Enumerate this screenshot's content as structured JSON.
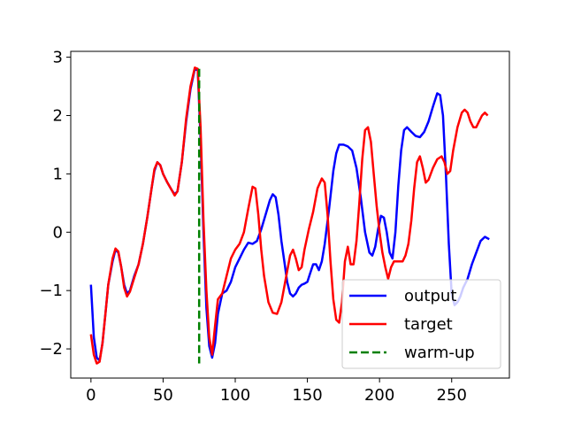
{
  "chart_data": {
    "type": "line",
    "title": "",
    "xlabel": "",
    "ylabel": "",
    "xlim": [
      -14,
      290
    ],
    "ylim": [
      -2.5,
      3.1
    ],
    "xticks": [
      0,
      50,
      100,
      150,
      200,
      250
    ],
    "yticks": [
      -2,
      -1,
      0,
      1,
      2,
      3
    ],
    "grid": false,
    "legend_position": "lower-right",
    "series": [
      {
        "name": "output",
        "color": "#0000ff",
        "style": "solid",
        "points": [
          [
            0,
            -0.9
          ],
          [
            2,
            -1.8
          ],
          [
            4,
            -2.15
          ],
          [
            6,
            -2.2
          ],
          [
            8,
            -1.9
          ],
          [
            10,
            -1.4
          ],
          [
            12,
            -0.9
          ],
          [
            15,
            -0.5
          ],
          [
            17,
            -0.3
          ],
          [
            19,
            -0.35
          ],
          [
            21,
            -0.6
          ],
          [
            23,
            -0.9
          ],
          [
            25,
            -1.05
          ],
          [
            27,
            -1.0
          ],
          [
            30,
            -0.75
          ],
          [
            33,
            -0.55
          ],
          [
            36,
            -0.2
          ],
          [
            39,
            0.25
          ],
          [
            42,
            0.75
          ],
          [
            44,
            1.05
          ],
          [
            46,
            1.2
          ],
          [
            48,
            1.15
          ],
          [
            50,
            1.0
          ],
          [
            53,
            0.85
          ],
          [
            56,
            0.72
          ],
          [
            58,
            0.65
          ],
          [
            60,
            0.7
          ],
          [
            63,
            1.2
          ],
          [
            66,
            1.9
          ],
          [
            69,
            2.45
          ],
          [
            72,
            2.8
          ],
          [
            74,
            2.78
          ],
          [
            76,
            1.6
          ],
          [
            78,
            0.0
          ],
          [
            80,
            -1.3
          ],
          [
            82,
            -1.95
          ],
          [
            84,
            -2.15
          ],
          [
            86,
            -1.9
          ],
          [
            88,
            -1.4
          ],
          [
            91,
            -1.05
          ],
          [
            94,
            -1.0
          ],
          [
            97,
            -0.85
          ],
          [
            100,
            -0.6
          ],
          [
            103,
            -0.45
          ],
          [
            106,
            -0.3
          ],
          [
            109,
            -0.18
          ],
          [
            112,
            -0.2
          ],
          [
            115,
            -0.15
          ],
          [
            118,
            0.05
          ],
          [
            121,
            0.3
          ],
          [
            124,
            0.55
          ],
          [
            126,
            0.65
          ],
          [
            128,
            0.6
          ],
          [
            130,
            0.3
          ],
          [
            132,
            -0.15
          ],
          [
            134,
            -0.5
          ],
          [
            136,
            -0.85
          ],
          [
            138,
            -1.05
          ],
          [
            140,
            -1.1
          ],
          [
            142,
            -1.05
          ],
          [
            144,
            -0.95
          ],
          [
            146,
            -0.9
          ],
          [
            148,
            -0.88
          ],
          [
            150,
            -0.85
          ],
          [
            152,
            -0.7
          ],
          [
            154,
            -0.55
          ],
          [
            156,
            -0.55
          ],
          [
            158,
            -0.65
          ],
          [
            160,
            -0.5
          ],
          [
            162,
            -0.2
          ],
          [
            165,
            0.4
          ],
          [
            168,
            1.05
          ],
          [
            170,
            1.35
          ],
          [
            172,
            1.5
          ],
          [
            175,
            1.5
          ],
          [
            178,
            1.47
          ],
          [
            181,
            1.4
          ],
          [
            184,
            1.1
          ],
          [
            187,
            0.6
          ],
          [
            190,
            0.0
          ],
          [
            193,
            -0.35
          ],
          [
            195,
            -0.4
          ],
          [
            197,
            -0.25
          ],
          [
            199,
            0.05
          ],
          [
            201,
            0.28
          ],
          [
            203,
            0.25
          ],
          [
            205,
            0.0
          ],
          [
            207,
            -0.35
          ],
          [
            209,
            -0.45
          ],
          [
            211,
            0.0
          ],
          [
            213,
            0.8
          ],
          [
            215,
            1.4
          ],
          [
            217,
            1.75
          ],
          [
            219,
            1.8
          ],
          [
            222,
            1.72
          ],
          [
            225,
            1.65
          ],
          [
            228,
            1.63
          ],
          [
            231,
            1.72
          ],
          [
            234,
            1.9
          ],
          [
            237,
            2.15
          ],
          [
            240,
            2.38
          ],
          [
            242,
            2.35
          ],
          [
            244,
            2.0
          ],
          [
            246,
            1.0
          ],
          [
            248,
            -0.2
          ],
          [
            250,
            -1.05
          ],
          [
            252,
            -1.25
          ],
          [
            254,
            -1.2
          ],
          [
            256,
            -1.1
          ],
          [
            258,
            -0.95
          ],
          [
            261,
            -0.8
          ],
          [
            264,
            -0.55
          ],
          [
            267,
            -0.35
          ],
          [
            270,
            -0.15
          ],
          [
            273,
            -0.08
          ],
          [
            276,
            -0.12
          ]
        ]
      },
      {
        "name": "target",
        "color": "#ff0000",
        "style": "solid",
        "points": [
          [
            0,
            -1.75
          ],
          [
            2,
            -2.1
          ],
          [
            4,
            -2.25
          ],
          [
            6,
            -2.22
          ],
          [
            8,
            -1.9
          ],
          [
            10,
            -1.4
          ],
          [
            12,
            -0.9
          ],
          [
            15,
            -0.45
          ],
          [
            17,
            -0.28
          ],
          [
            19,
            -0.33
          ],
          [
            21,
            -0.6
          ],
          [
            23,
            -0.95
          ],
          [
            25,
            -1.1
          ],
          [
            27,
            -1.02
          ],
          [
            30,
            -0.78
          ],
          [
            33,
            -0.55
          ],
          [
            36,
            -0.2
          ],
          [
            39,
            0.25
          ],
          [
            42,
            0.75
          ],
          [
            44,
            1.08
          ],
          [
            46,
            1.2
          ],
          [
            48,
            1.15
          ],
          [
            50,
            1.0
          ],
          [
            53,
            0.85
          ],
          [
            56,
            0.72
          ],
          [
            58,
            0.63
          ],
          [
            60,
            0.7
          ],
          [
            63,
            1.2
          ],
          [
            66,
            1.95
          ],
          [
            69,
            2.5
          ],
          [
            72,
            2.82
          ],
          [
            74,
            2.8
          ],
          [
            76,
            1.8
          ],
          [
            78,
            0.2
          ],
          [
            80,
            -1.0
          ],
          [
            82,
            -1.8
          ],
          [
            84,
            -2.1
          ],
          [
            86,
            -1.6
          ],
          [
            88,
            -1.15
          ],
          [
            91,
            -1.05
          ],
          [
            94,
            -0.75
          ],
          [
            97,
            -0.45
          ],
          [
            100,
            -0.3
          ],
          [
            103,
            -0.2
          ],
          [
            106,
            0.0
          ],
          [
            109,
            0.4
          ],
          [
            112,
            0.78
          ],
          [
            114,
            0.75
          ],
          [
            116,
            0.3
          ],
          [
            118,
            -0.3
          ],
          [
            120,
            -0.75
          ],
          [
            123,
            -1.2
          ],
          [
            126,
            -1.38
          ],
          [
            129,
            -1.4
          ],
          [
            132,
            -1.2
          ],
          [
            135,
            -0.8
          ],
          [
            138,
            -0.4
          ],
          [
            140,
            -0.3
          ],
          [
            142,
            -0.45
          ],
          [
            144,
            -0.65
          ],
          [
            146,
            -0.6
          ],
          [
            148,
            -0.3
          ],
          [
            151,
            0.05
          ],
          [
            154,
            0.35
          ],
          [
            157,
            0.75
          ],
          [
            160,
            0.92
          ],
          [
            162,
            0.85
          ],
          [
            164,
            0.3
          ],
          [
            166,
            -0.5
          ],
          [
            168,
            -1.15
          ],
          [
            170,
            -1.5
          ],
          [
            172,
            -1.55
          ],
          [
            174,
            -1.2
          ],
          [
            176,
            -0.5
          ],
          [
            178,
            -0.25
          ],
          [
            180,
            -0.55
          ],
          [
            182,
            -0.55
          ],
          [
            184,
            -0.15
          ],
          [
            186,
            0.5
          ],
          [
            188,
            1.25
          ],
          [
            190,
            1.75
          ],
          [
            192,
            1.8
          ],
          [
            194,
            1.55
          ],
          [
            196,
            1.0
          ],
          [
            198,
            0.45
          ],
          [
            200,
            0.0
          ],
          [
            202,
            -0.35
          ],
          [
            204,
            -0.6
          ],
          [
            206,
            -0.8
          ],
          [
            208,
            -0.6
          ],
          [
            210,
            -0.5
          ],
          [
            212,
            -0.5
          ],
          [
            214,
            -0.5
          ],
          [
            216,
            -0.5
          ],
          [
            218,
            -0.4
          ],
          [
            220,
            -0.2
          ],
          [
            222,
            0.2
          ],
          [
            224,
            0.75
          ],
          [
            226,
            1.2
          ],
          [
            228,
            1.3
          ],
          [
            230,
            1.1
          ],
          [
            232,
            0.85
          ],
          [
            234,
            0.9
          ],
          [
            237,
            1.1
          ],
          [
            240,
            1.25
          ],
          [
            243,
            1.3
          ],
          [
            245,
            1.2
          ],
          [
            247,
            1.0
          ],
          [
            249,
            1.05
          ],
          [
            251,
            1.4
          ],
          [
            254,
            1.8
          ],
          [
            257,
            2.05
          ],
          [
            259,
            2.1
          ],
          [
            261,
            2.05
          ],
          [
            263,
            1.9
          ],
          [
            265,
            1.8
          ],
          [
            267,
            1.8
          ],
          [
            269,
            1.9
          ],
          [
            271,
            2.0
          ],
          [
            273,
            2.05
          ],
          [
            275,
            2.0
          ]
        ]
      },
      {
        "name": "warm-up",
        "color": "#008000",
        "style": "dashed",
        "points": [
          [
            75,
            2.8
          ],
          [
            75,
            -2.25
          ]
        ]
      }
    ]
  }
}
